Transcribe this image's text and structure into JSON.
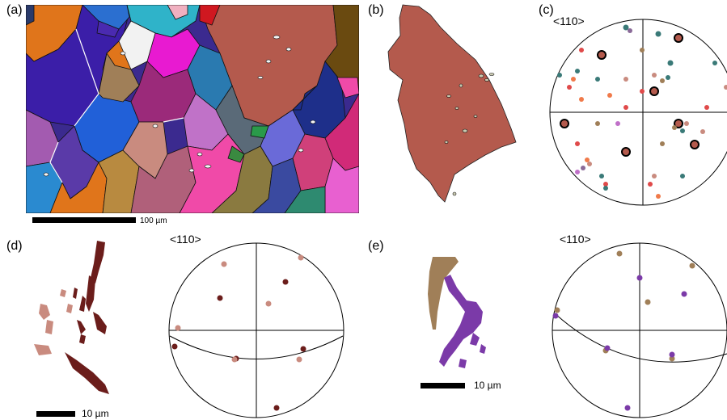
{
  "figure": {
    "panels": {
      "a": {
        "label": "(a)",
        "scale_text": "100 µm"
      },
      "b": {
        "label": "(b)"
      },
      "c": {
        "label": "(c)",
        "pole": "<110>"
      },
      "d": {
        "label": "(d)",
        "pole": "<110>",
        "scale_text": "10 µm"
      },
      "e": {
        "label": "(e)",
        "pole": "<110>",
        "scale_text": "10 µm"
      }
    },
    "colors": {
      "parent_grain": "#b45a4d",
      "twin_pink": "#c98b7f",
      "twin_dark": "#6b1d1b",
      "twin_tan": "#a07f58",
      "twin_purple": "#7b3aa8"
    }
  }
}
